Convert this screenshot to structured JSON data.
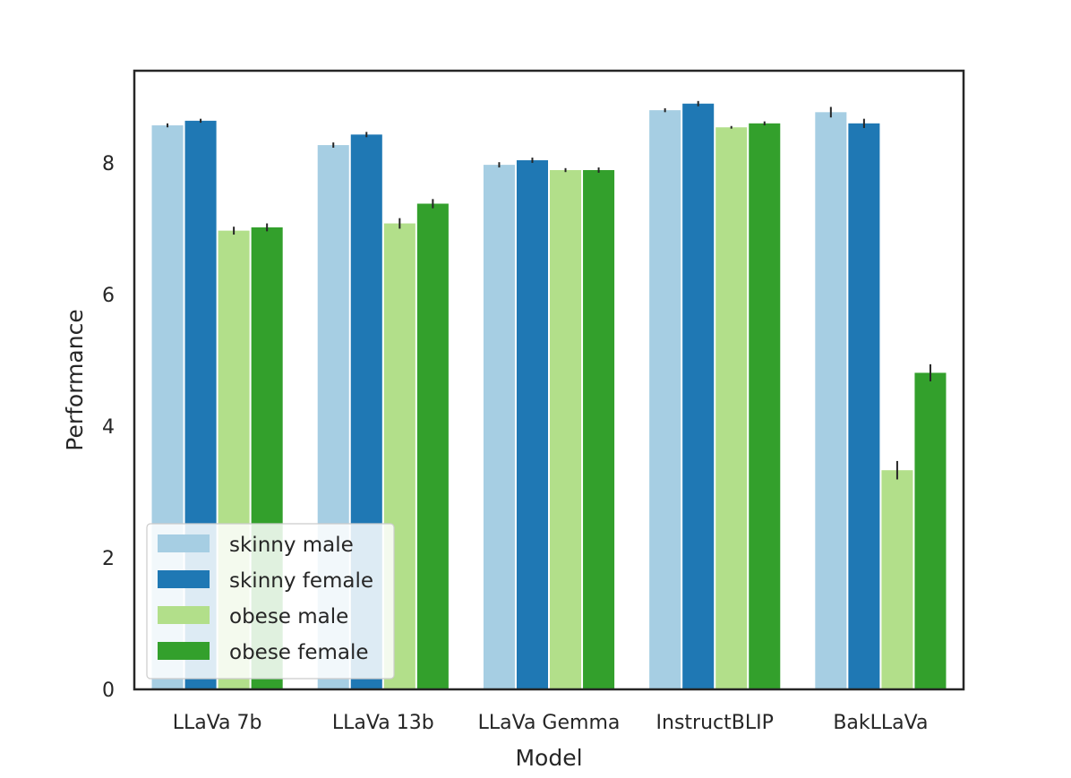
{
  "chart_data": {
    "type": "bar",
    "title": "",
    "xlabel": "Model",
    "ylabel": "Performance",
    "categories": [
      "LLaVa 7b",
      "LLaVa 13b",
      "LLaVa Gemma",
      "InstructBLIP",
      "BakLLaVa"
    ],
    "ylim": [
      0,
      9.4
    ],
    "yticks": [
      0,
      2,
      4,
      6,
      8
    ],
    "grid": false,
    "legend_position": "lower-left",
    "series": [
      {
        "name": "skinny male",
        "color": "#a6cee3",
        "values": [
          8.57,
          8.27,
          7.97,
          8.8,
          8.77
        ],
        "errors": [
          0.03,
          0.04,
          0.04,
          0.03,
          0.08
        ]
      },
      {
        "name": "skinny female",
        "color": "#1f78b4",
        "values": [
          8.64,
          8.43,
          8.04,
          8.9,
          8.6
        ],
        "errors": [
          0.03,
          0.04,
          0.04,
          0.04,
          0.07
        ]
      },
      {
        "name": "obese male",
        "color": "#b2df8a",
        "values": [
          6.97,
          7.08,
          7.89,
          8.54,
          3.33
        ],
        "errors": [
          0.06,
          0.08,
          0.03,
          0.02,
          0.14
        ]
      },
      {
        "name": "obese female",
        "color": "#33a02c",
        "values": [
          7.02,
          7.38,
          7.89,
          8.6,
          4.81
        ],
        "errors": [
          0.06,
          0.07,
          0.04,
          0.03,
          0.13
        ]
      }
    ]
  }
}
